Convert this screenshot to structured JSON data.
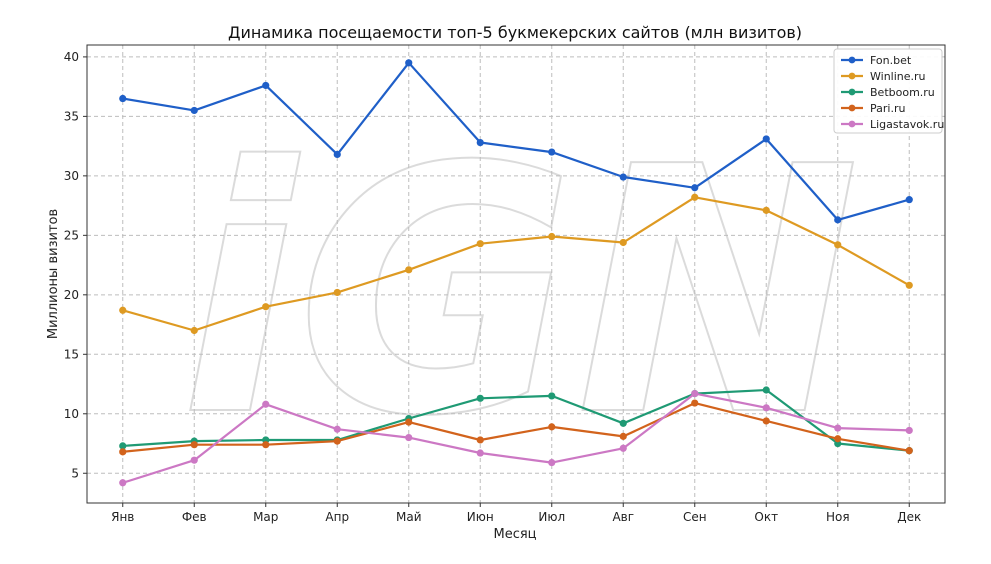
{
  "chart_data": {
    "type": "line",
    "title": "Динамика посещаемости топ-5 букмекерских сайтов (млн визитов)",
    "xlabel": "Месяц",
    "ylabel": "Миллионы визитов",
    "categories": [
      "Янв",
      "Фев",
      "Мар",
      "Апр",
      "Май",
      "Июн",
      "Июл",
      "Авг",
      "Сен",
      "Окт",
      "Ноя",
      "Дек"
    ],
    "ylim": [
      2.5,
      41
    ],
    "yticks": [
      5,
      10,
      15,
      20,
      25,
      30,
      35,
      40
    ],
    "grid": true,
    "legend_position": "top-right",
    "series": [
      {
        "name": "Fon.bet",
        "color": "#1f5fc8",
        "values": [
          36.5,
          35.5,
          37.6,
          31.8,
          39.5,
          32.8,
          32.0,
          29.9,
          29.0,
          33.1,
          26.3,
          28.0
        ]
      },
      {
        "name": "Winline.ru",
        "color": "#de9a22",
        "values": [
          18.7,
          17.0,
          19.0,
          20.2,
          22.1,
          24.3,
          24.9,
          24.4,
          28.2,
          27.1,
          24.2,
          20.8
        ]
      },
      {
        "name": "Betboom.ru",
        "color": "#1f9a74",
        "values": [
          7.3,
          7.7,
          7.8,
          7.8,
          9.6,
          11.3,
          11.5,
          9.2,
          11.7,
          12.0,
          7.5,
          6.9
        ]
      },
      {
        "name": "Pari.ru",
        "color": "#d2631c",
        "values": [
          6.8,
          7.4,
          7.4,
          7.7,
          9.3,
          7.8,
          8.9,
          8.1,
          10.9,
          9.4,
          7.9,
          6.9
        ]
      },
      {
        "name": "Ligastavok.ru",
        "color": "#cc78c4",
        "values": [
          4.2,
          6.1,
          10.8,
          8.7,
          8.0,
          6.7,
          5.9,
          7.1,
          11.7,
          10.5,
          8.8,
          8.6
        ]
      }
    ],
    "watermark": "iGN"
  }
}
